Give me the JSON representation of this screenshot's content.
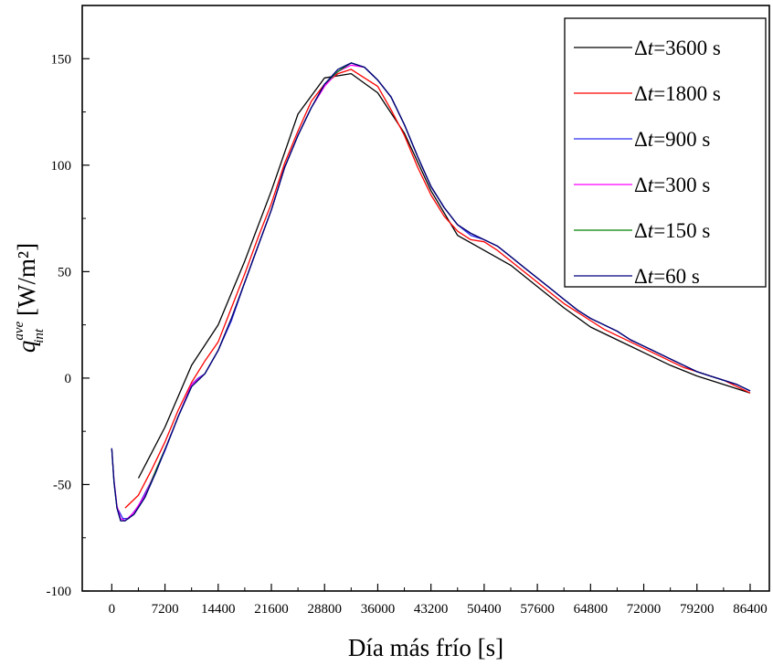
{
  "chart_data": {
    "type": "line",
    "xlabel": "Día más frío [s]",
    "ylabel": {
      "base": "q",
      "superscript": "ave",
      "subscript": "int",
      "unit": "[W/m²]"
    },
    "xlim": [
      -4000,
      89000
    ],
    "ylim": [
      -100,
      175
    ],
    "xticks": [
      0,
      7200,
      14400,
      21600,
      28800,
      36000,
      43200,
      50400,
      57600,
      64800,
      72000,
      79200,
      86400
    ],
    "yticks": [
      -100,
      -50,
      0,
      50,
      100,
      150
    ],
    "grid": false,
    "legend_position": "top-right",
    "series": [
      {
        "name": "Δt=3600 s",
        "color": "#000000",
        "x": [
          3600,
          7200,
          10800,
          14400,
          18000,
          21600,
          25200,
          28800,
          32400,
          36000,
          39600,
          43200,
          46800,
          50400,
          54000,
          57600,
          61200,
          64800,
          68400,
          72000,
          75600,
          79200,
          82800,
          86400
        ],
        "y": [
          -47,
          -23,
          6,
          25,
          55,
          88,
          124,
          141,
          143,
          134,
          115,
          88,
          67,
          60,
          53,
          43,
          33,
          24,
          18,
          12,
          6,
          1,
          -3,
          -7
        ]
      },
      {
        "name": "Δt=1800 s",
        "color": "#ff0000",
        "x": [
          1800,
          3600,
          5400,
          7200,
          9000,
          10800,
          12600,
          14400,
          16200,
          18000,
          19800,
          21600,
          23400,
          25200,
          27000,
          28800,
          30600,
          32400,
          34200,
          36000,
          37800,
          39600,
          41400,
          43200,
          45000,
          46800,
          48600,
          50400,
          52200,
          54000,
          55800,
          57600,
          59400,
          61200,
          63000,
          64800,
          66600,
          68400,
          70200,
          72000,
          73800,
          75600,
          77400,
          79200,
          81000,
          82800,
          84600,
          86400
        ],
        "y": [
          -61,
          -55,
          -43,
          -30,
          -15,
          -2,
          8,
          17,
          33,
          49,
          66,
          82,
          101,
          116,
          130,
          138,
          143,
          145,
          141,
          137,
          126,
          114,
          99,
          86,
          76,
          69,
          65,
          64,
          60,
          55,
          50,
          45,
          40,
          35,
          31,
          27,
          23,
          20,
          17,
          14,
          11,
          8,
          5,
          3,
          1,
          -1,
          -4,
          -7
        ]
      },
      {
        "name": "Δt=900 s",
        "color": "#2f2ff0",
        "x": [
          900,
          1500,
          2300,
          3600,
          5400,
          7200,
          9000,
          10800,
          11700,
          12600,
          14400,
          16200,
          18000,
          19800,
          21600,
          23400,
          25200,
          27000,
          28800,
          30600,
          32400,
          34200,
          36000,
          37800,
          39600,
          41400,
          43200,
          45000,
          46800,
          48600,
          50400,
          52200,
          54000,
          55800,
          57600,
          59400,
          61200,
          63000,
          64800,
          66600,
          68400,
          70200,
          72000,
          73800,
          75600,
          77400,
          79200,
          81000,
          82800,
          84600,
          86400
        ],
        "y": [
          -62,
          -66,
          -66,
          -60,
          -48,
          -34,
          -18,
          -3,
          0,
          2,
          13,
          27,
          45,
          62,
          79,
          99,
          114,
          127,
          138,
          144,
          148,
          146,
          140,
          132,
          119,
          104,
          90,
          80,
          72,
          67,
          65,
          62,
          57,
          52,
          47,
          42,
          37,
          32,
          28,
          25,
          22,
          18,
          15,
          12,
          9,
          6,
          3,
          1,
          -1,
          -3,
          -6
        ]
      },
      {
        "name": "Δt=300 s",
        "color": "#ff00ff",
        "x": [
          0,
          300,
          700,
          1200,
          1800,
          3000,
          4500,
          6000,
          7500,
          9000,
          10800,
          12600,
          14400,
          16200,
          18000,
          19800,
          21600,
          23400,
          25200,
          27000,
          28800,
          30600,
          32400,
          34200,
          36000,
          37800,
          39600,
          41400,
          43200,
          45000,
          46800,
          48600,
          50400,
          52200,
          54000,
          55800,
          57600,
          59400,
          61200,
          63000,
          64800,
          66600,
          68400,
          70200,
          72000,
          73800,
          75600,
          77400,
          79200,
          81000,
          82800,
          84600,
          86400
        ],
        "y": [
          -33,
          -48,
          -60,
          -66,
          -67,
          -63,
          -55,
          -43,
          -31,
          -18,
          -3,
          2,
          13,
          28,
          45,
          62,
          79,
          99,
          114,
          127,
          137,
          144,
          147,
          146,
          140,
          132,
          119,
          104,
          90,
          80,
          72,
          68,
          65,
          62,
          57,
          52,
          47,
          42,
          37,
          32,
          28,
          25,
          22,
          18,
          15,
          12,
          9,
          6,
          3,
          1,
          -1,
          -3,
          -6
        ]
      },
      {
        "name": "Δt=150 s",
        "color": "#008000",
        "x": [
          0,
          300,
          700,
          1200,
          1800,
          3000,
          4500,
          6000,
          7500,
          9000,
          10800,
          12600,
          14400,
          16200,
          18000,
          19800,
          21600,
          23400,
          25200,
          27000,
          28800,
          30600,
          32400,
          34200,
          36000,
          37800,
          39600,
          41400,
          43200,
          45000,
          46800,
          48600,
          50400,
          52200,
          54000,
          55800,
          57600,
          59400,
          61200,
          63000,
          64800,
          66600,
          68400,
          70200,
          72000,
          73800,
          75600,
          77400,
          79200,
          81000,
          82800,
          84600,
          86400
        ],
        "y": [
          -33,
          -49,
          -61,
          -67,
          -67,
          -64,
          -56,
          -43,
          -31,
          -18,
          -4,
          2,
          13,
          28,
          45,
          62,
          79,
          99,
          114,
          127,
          138,
          144,
          148,
          146,
          140,
          132,
          119,
          104,
          90,
          80,
          72,
          68,
          65,
          62,
          57,
          52,
          47,
          42,
          37,
          32,
          28,
          25,
          22,
          18,
          15,
          12,
          9,
          6,
          3,
          1,
          -1,
          -3,
          -6
        ]
      },
      {
        "name": "Δt=60 s",
        "color": "#000080",
        "x": [
          0,
          300,
          700,
          1200,
          1800,
          3000,
          4500,
          6000,
          7500,
          9000,
          10800,
          12600,
          14400,
          16200,
          18000,
          19800,
          21600,
          23400,
          25200,
          27000,
          28800,
          30600,
          32400,
          34200,
          36000,
          37800,
          39600,
          41400,
          43200,
          45000,
          46800,
          48600,
          50400,
          52200,
          54000,
          55800,
          57600,
          59400,
          61200,
          63000,
          64800,
          66600,
          68400,
          70200,
          72000,
          73800,
          75600,
          77400,
          79200,
          81000,
          82800,
          84600,
          86400
        ],
        "y": [
          -33,
          -49,
          -61,
          -67,
          -67,
          -64,
          -56,
          -44,
          -31,
          -18,
          -4,
          2,
          13,
          28,
          45,
          62,
          79,
          99,
          114,
          127,
          138,
          145,
          148,
          146,
          140,
          132,
          119,
          104,
          90,
          80,
          72,
          68,
          65,
          62,
          57,
          52,
          47,
          42,
          37,
          32,
          28,
          25,
          22,
          18,
          15,
          12,
          9,
          6,
          3,
          1,
          -1,
          -3,
          -6
        ]
      }
    ]
  }
}
